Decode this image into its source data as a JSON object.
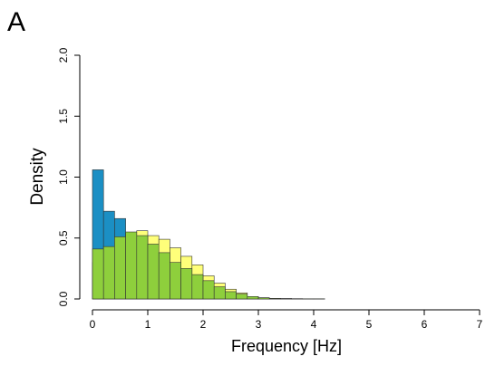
{
  "panel_label": "A",
  "chart_data": {
    "type": "bar",
    "subtype": "overlaid-histogram",
    "xlabel": "Frequency [Hz]",
    "ylabel": "Density",
    "xlim": [
      0,
      7
    ],
    "ylim": [
      0,
      2
    ],
    "xticks": [
      "0",
      "1",
      "2",
      "3",
      "4",
      "5",
      "6",
      "7"
    ],
    "yticks": [
      "0.0",
      "0.5",
      "1.0",
      "1.5",
      "2.0"
    ],
    "bin_width": 0.2,
    "bins_start": [
      0.0,
      0.2,
      0.4,
      0.6,
      0.8,
      1.0,
      1.2,
      1.4,
      1.6,
      1.8,
      2.0,
      2.2,
      2.4,
      2.6,
      2.8,
      3.0,
      3.2,
      3.4,
      3.6,
      3.8,
      4.0,
      4.2,
      4.4,
      4.6,
      4.8,
      5.0,
      5.2,
      5.4,
      5.6,
      5.8,
      6.0,
      6.2,
      6.4,
      6.6,
      6.8
    ],
    "grid": false,
    "legend": "none",
    "series": [
      {
        "color": "#1b8fc4",
        "values": [
          1.06,
          0.72,
          0.66,
          0.5,
          0.4,
          0.32,
          0.24,
          0.18,
          0.14,
          0.1,
          0.08,
          0.05,
          0.04,
          0.02,
          0.01,
          0.005,
          0.003,
          0.002,
          0.001,
          0.001,
          0.001,
          0.0,
          0.0,
          0.0,
          0.0,
          0.0,
          0.0,
          0.0,
          0.0,
          0.0,
          0.0,
          0.0,
          0.0,
          0.0,
          0.0
        ]
      },
      {
        "color": "#ffff7a",
        "values": [
          0.3,
          0.4,
          0.47,
          0.54,
          0.56,
          0.52,
          0.49,
          0.42,
          0.35,
          0.28,
          0.19,
          0.13,
          0.08,
          0.05,
          0.02,
          0.01,
          0.005,
          0.003,
          0.002,
          0.001,
          0.001,
          0.0,
          0.0,
          0.0,
          0.0,
          0.0,
          0.0,
          0.0,
          0.0,
          0.0,
          0.0,
          0.0,
          0.0,
          0.0,
          0.0
        ]
      },
      {
        "color": "#8ecf3c",
        "values": [
          0.41,
          0.43,
          0.51,
          0.55,
          0.52,
          0.45,
          0.38,
          0.3,
          0.25,
          0.2,
          0.15,
          0.1,
          0.06,
          0.04,
          0.02,
          0.01,
          0.005,
          0.003,
          0.002,
          0.001,
          0.001,
          0.0,
          0.0,
          0.0,
          0.0,
          0.0,
          0.0,
          0.0,
          0.0,
          0.0,
          0.0,
          0.0,
          0.0,
          0.0,
          0.0
        ]
      }
    ]
  }
}
